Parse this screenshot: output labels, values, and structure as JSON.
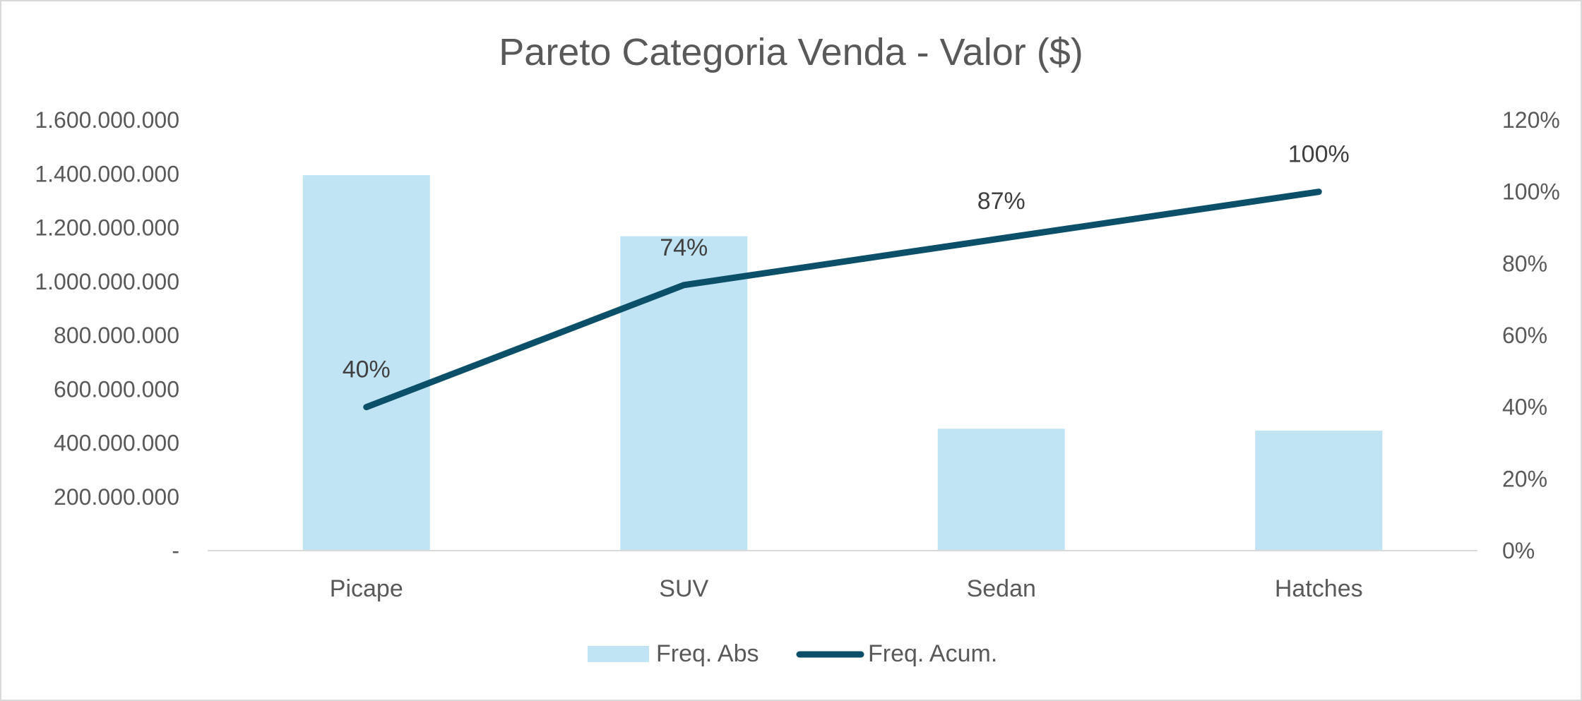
{
  "chart_data": {
    "type": "bar",
    "title": "Pareto Categoria Venda - Valor ($)",
    "categories": [
      "Picape",
      "SUV",
      "Sedan",
      "Hatches"
    ],
    "series": [
      {
        "name": "Freq. Abs",
        "type": "bar",
        "axis": "primary",
        "color": "#c1e4f5",
        "values": [
          1395000000,
          1168000000,
          453000000,
          446000000
        ]
      },
      {
        "name": "Freq. Acum.",
        "type": "line",
        "axis": "secondary",
        "color": "#0b5068",
        "values": [
          40,
          74,
          87,
          100
        ],
        "data_labels": [
          "40%",
          "74%",
          "87%",
          "100%"
        ]
      }
    ],
    "y_primary": {
      "min": 0,
      "max": 1600000000,
      "ticks": [
        0,
        200000000,
        400000000,
        600000000,
        800000000,
        1000000000,
        1200000000,
        1400000000,
        1600000000
      ],
      "tick_labels": [
        "-",
        "200.000.000",
        "400.000.000",
        "600.000.000",
        "800.000.000",
        "1.000.000.000",
        "1.200.000.000",
        "1.400.000.000",
        "1.600.000.000"
      ]
    },
    "y_secondary": {
      "min": 0,
      "max": 120,
      "ticks": [
        0,
        20,
        40,
        60,
        80,
        100,
        120
      ],
      "tick_labels": [
        "0%",
        "20%",
        "40%",
        "60%",
        "80%",
        "100%",
        "120%"
      ]
    },
    "grid": false,
    "legend_position": "bottom",
    "colors": {
      "axis_line": "#d9d9d9",
      "text": "#595959",
      "data_label": "#404040"
    }
  }
}
